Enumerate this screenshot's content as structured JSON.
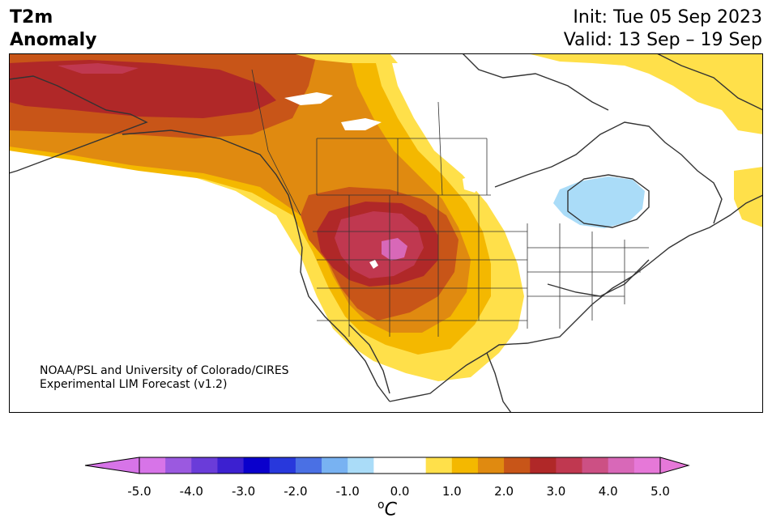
{
  "header": {
    "title_line1": "T2m",
    "title_line2": "Anomaly",
    "init_text": "Init: Tue 05 Sep 2023",
    "valid_text": "Valid: 13 Sep – 19 Sep"
  },
  "credit": {
    "line1": "NOAA/PSL and University of Colorado/CIRES",
    "line2": "Experimental LIM Forecast (v1.2)"
  },
  "colorbar": {
    "unit_sup": "o",
    "unit_main": "C",
    "tick_labels": [
      "-5.0",
      "-4.0",
      "-3.0",
      "-2.0",
      "-1.0",
      "0.0",
      "1.0",
      "2.0",
      "3.0",
      "4.0",
      "5.0"
    ],
    "colors": [
      "#d774e8",
      "#9b59e0",
      "#6a3cd9",
      "#3c20d0",
      "#0a00cc",
      "#2838dc",
      "#4a70e4",
      "#78b2f2",
      "#aadcf8",
      "#ffffff",
      "#ffffff",
      "#ffe04a",
      "#f4b800",
      "#e08a10",
      "#c85518",
      "#b02828",
      "#c03850",
      "#cc5084",
      "#d868b8",
      "#e678d8"
    ],
    "under_color": "#d774e8",
    "over_color": "#e678d8"
  },
  "map_colors": {
    "level1": "#ffe04a",
    "level2": "#f4b800",
    "level3": "#e08a10",
    "level4": "#c85518",
    "level5": "#b02828",
    "level6": "#c03850",
    "level7": "#d868b8",
    "cold1": "#aadcf8",
    "coast": "#333333"
  }
}
